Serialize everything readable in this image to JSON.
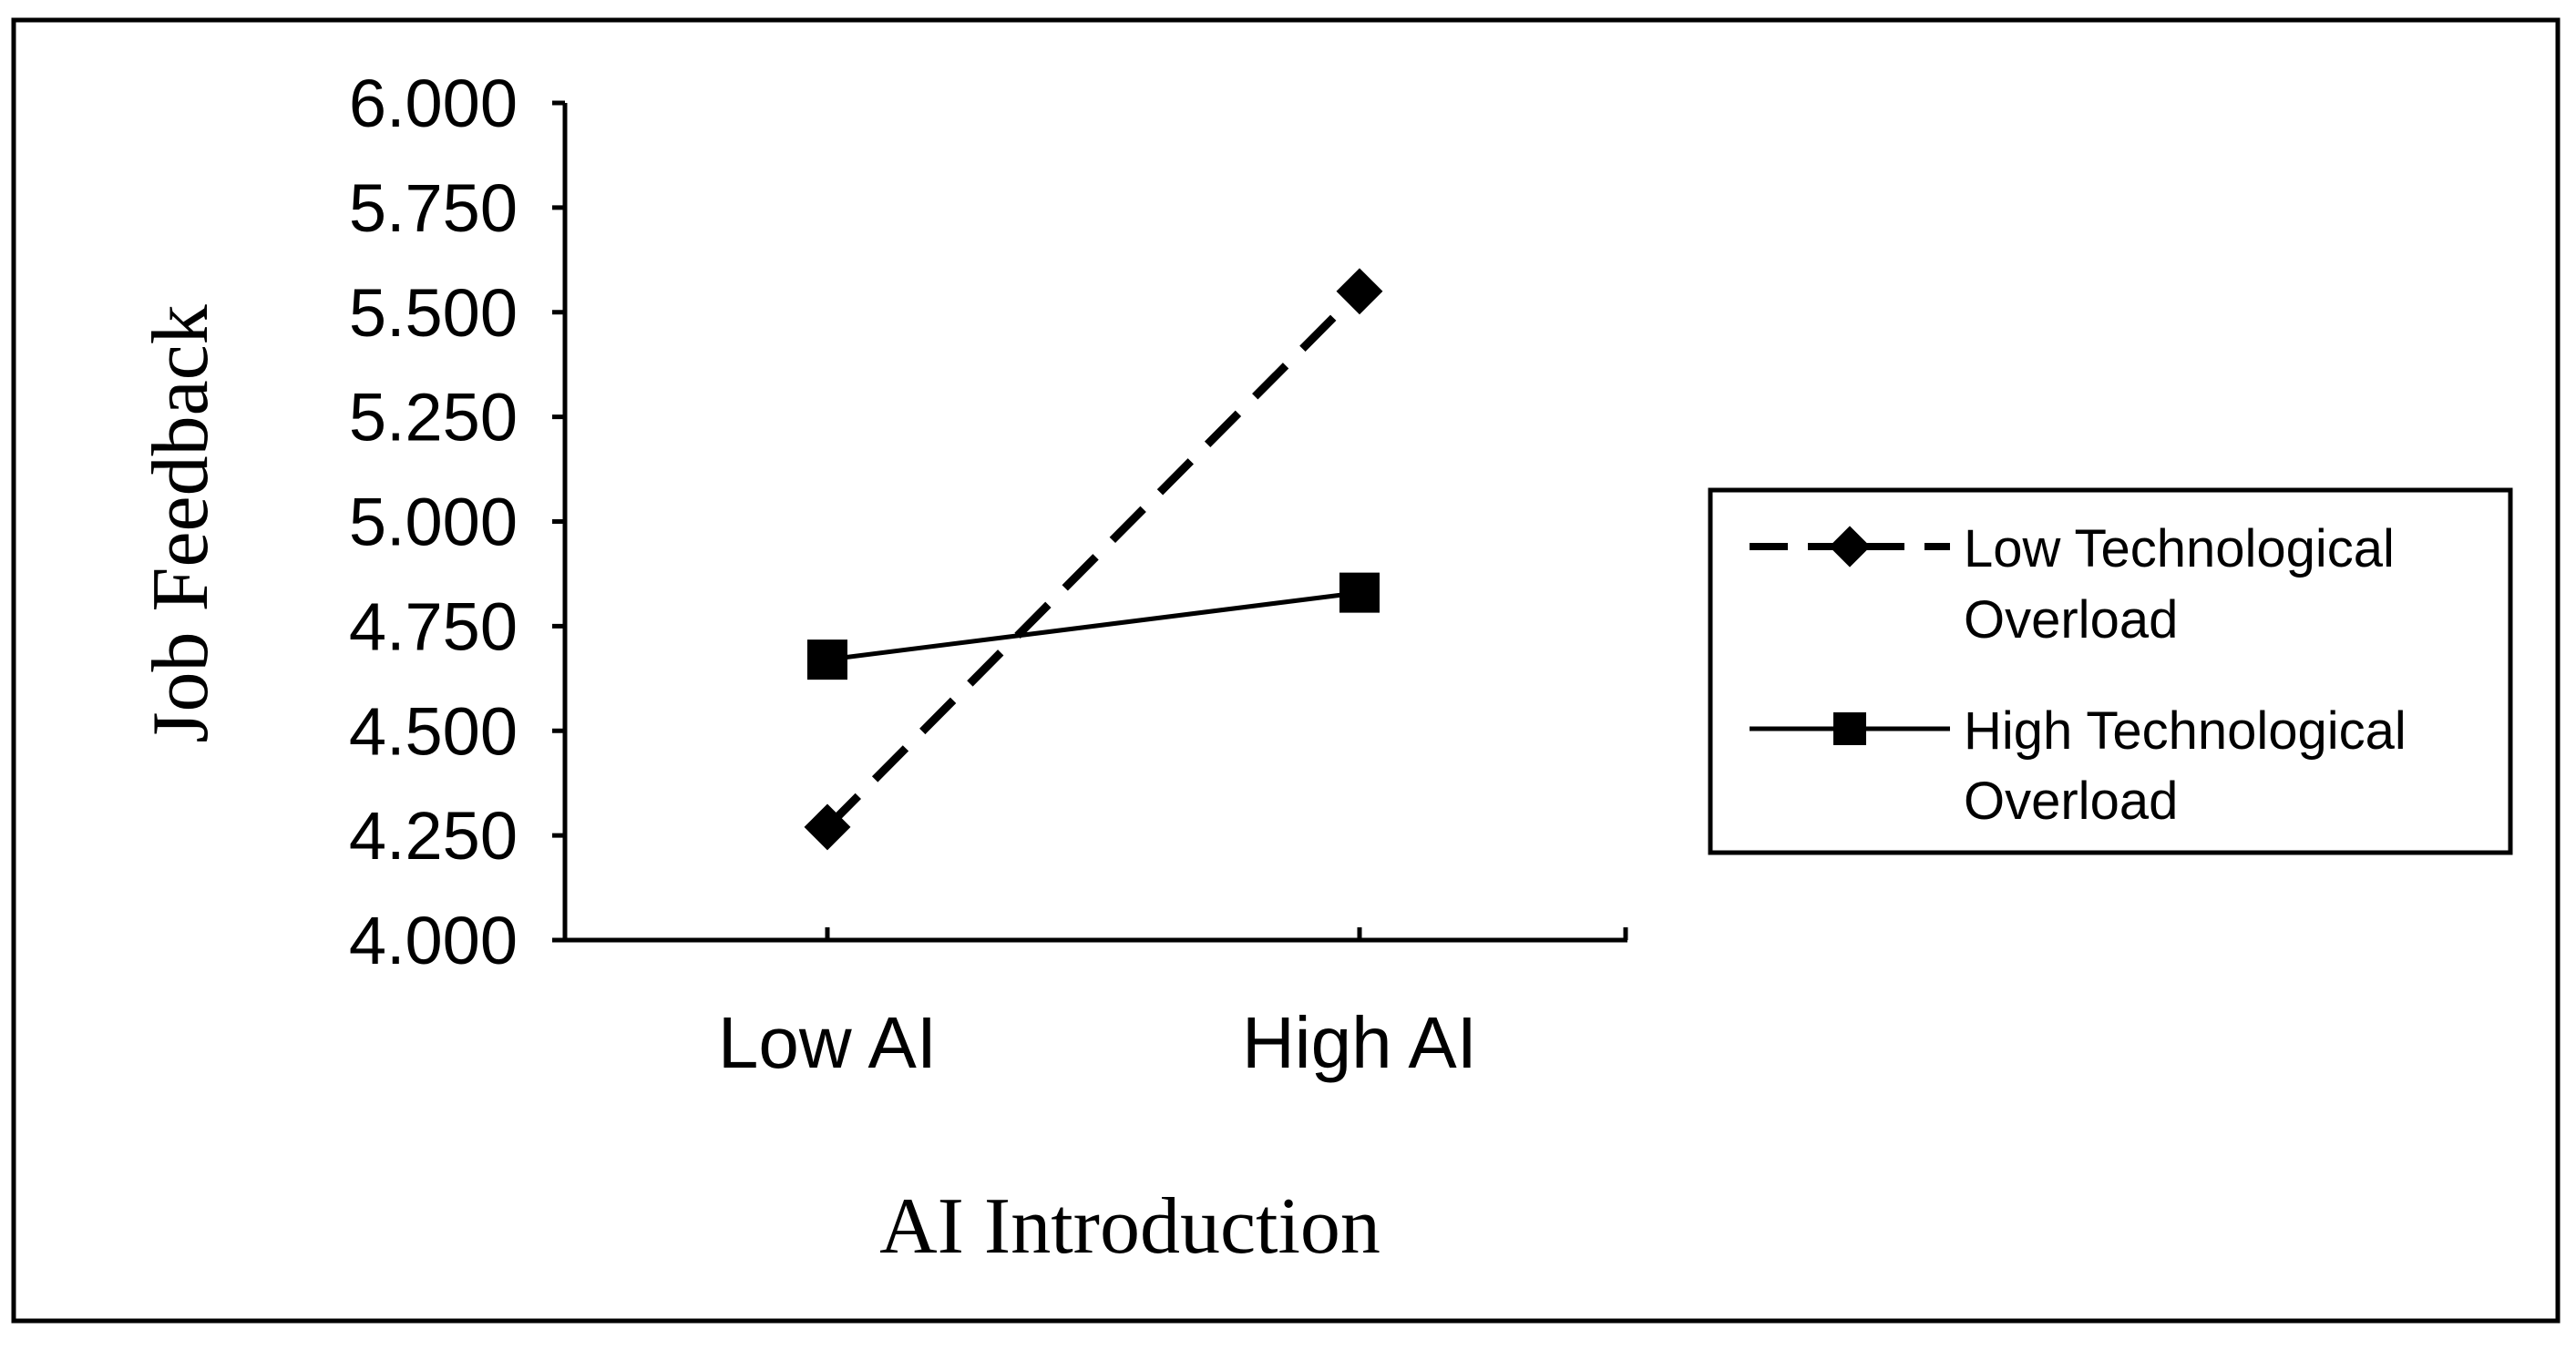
{
  "chart_data": {
    "type": "line",
    "xlabel": "AI Introduction",
    "ylabel": "Job Feedback",
    "categories": [
      "Low AI",
      "High AI"
    ],
    "ylim": [
      4.0,
      6.0
    ],
    "yticks": [
      "4.000",
      "4.250",
      "4.500",
      "4.750",
      "5.000",
      "5.250",
      "5.500",
      "5.750",
      "6.000"
    ],
    "series": [
      {
        "name": "Low Technological Overload",
        "name_lines": [
          "Low Technological",
          "Overload"
        ],
        "values": [
          4.27,
          5.55
        ],
        "line_style": "dashed",
        "marker": "diamond",
        "color": "#000000"
      },
      {
        "name": "High Technological Overload",
        "name_lines": [
          "High Technological",
          "Overload"
        ],
        "values": [
          4.67,
          4.83
        ],
        "line_style": "solid",
        "marker": "square",
        "color": "#000000"
      }
    ],
    "grid": false,
    "legend_position": "right"
  }
}
